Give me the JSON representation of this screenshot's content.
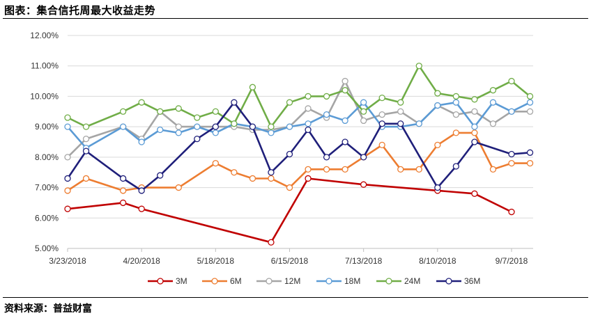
{
  "header": {
    "title": "图表：集合信托周最大收益走势"
  },
  "footer": {
    "source": "资料来源：普益财富"
  },
  "chart_data": {
    "type": "line",
    "title": "",
    "xlabel": "",
    "ylabel": "",
    "ylim": [
      5.0,
      12.0
    ],
    "y_ticks": [
      "5.00%",
      "6.00%",
      "7.00%",
      "8.00%",
      "9.00%",
      "10.00%",
      "11.00%",
      "12.00%"
    ],
    "x_ticks": [
      "3/23/2018",
      "4/20/2018",
      "5/18/2018",
      "6/15/2018",
      "7/13/2018",
      "8/10/2018",
      "9/7/2018"
    ],
    "grid": "horizontal",
    "legend": "bottom",
    "series": [
      {
        "name": "3M",
        "color": "#C00000",
        "points": [
          [
            "3/23/2018",
            6.3
          ],
          [
            "4/13/2018",
            6.5
          ],
          [
            "4/20/2018",
            6.3
          ],
          [
            "6/8/2018",
            5.2
          ],
          [
            "6/22/2018",
            7.3
          ],
          [
            "7/13/2018",
            7.1
          ],
          [
            "8/10/2018",
            6.9
          ],
          [
            "8/24/2018",
            6.8
          ],
          [
            "9/7/2018",
            6.2
          ]
        ]
      },
      {
        "name": "6M",
        "color": "#ED7D31",
        "points": [
          [
            "3/23/2018",
            6.9
          ],
          [
            "3/30/2018",
            7.3
          ],
          [
            "4/13/2018",
            6.9
          ],
          [
            "4/20/2018",
            7.0
          ],
          [
            "5/4/2018",
            7.0
          ],
          [
            "5/18/2018",
            7.8
          ],
          [
            "5/25/2018",
            7.5
          ],
          [
            "6/1/2018",
            7.3
          ],
          [
            "6/8/2018",
            7.3
          ],
          [
            "6/15/2018",
            7.0
          ],
          [
            "6/22/2018",
            7.6
          ],
          [
            "6/29/2018",
            7.6
          ],
          [
            "7/6/2018",
            7.6
          ],
          [
            "7/13/2018",
            8.0
          ],
          [
            "7/20/2018",
            8.4
          ],
          [
            "7/27/2018",
            7.6
          ],
          [
            "8/3/2018",
            7.6
          ],
          [
            "8/10/2018",
            8.4
          ],
          [
            "8/17/2018",
            8.8
          ],
          [
            "8/24/2018",
            8.8
          ],
          [
            "8/31/2018",
            7.6
          ],
          [
            "9/7/2018",
            7.8
          ],
          [
            "9/14/2018",
            7.8
          ]
        ]
      },
      {
        "name": "12M",
        "color": "#A5A5A5",
        "points": [
          [
            "3/23/2018",
            8.0
          ],
          [
            "3/30/2018",
            8.6
          ],
          [
            "4/13/2018",
            9.0
          ],
          [
            "4/20/2018",
            8.6
          ],
          [
            "4/27/2018",
            9.5
          ],
          [
            "5/4/2018",
            9.0
          ],
          [
            "5/11/2018",
            9.0
          ],
          [
            "5/18/2018",
            9.0
          ],
          [
            "5/25/2018",
            9.0
          ],
          [
            "6/1/2018",
            8.9
          ],
          [
            "6/8/2018",
            8.9
          ],
          [
            "6/15/2018",
            9.0
          ],
          [
            "6/22/2018",
            9.6
          ],
          [
            "6/29/2018",
            9.3
          ],
          [
            "7/6/2018",
            10.5
          ],
          [
            "7/13/2018",
            9.2
          ],
          [
            "7/20/2018",
            9.4
          ],
          [
            "7/27/2018",
            9.5
          ],
          [
            "8/3/2018",
            9.1
          ],
          [
            "8/10/2018",
            9.7
          ],
          [
            "8/17/2018",
            9.4
          ],
          [
            "8/24/2018",
            9.5
          ],
          [
            "8/31/2018",
            9.1
          ],
          [
            "9/7/2018",
            9.5
          ],
          [
            "9/14/2018",
            9.5
          ]
        ]
      },
      {
        "name": "18M",
        "color": "#5B9BD5",
        "points": [
          [
            "3/23/2018",
            9.0
          ],
          [
            "3/30/2018",
            8.3
          ],
          [
            "4/13/2018",
            9.0
          ],
          [
            "4/20/2018",
            8.5
          ],
          [
            "4/27/2018",
            8.9
          ],
          [
            "5/4/2018",
            8.8
          ],
          [
            "5/11/2018",
            9.0
          ],
          [
            "5/18/2018",
            8.8
          ],
          [
            "5/25/2018",
            9.1
          ],
          [
            "6/1/2018",
            9.0
          ],
          [
            "6/8/2018",
            8.8
          ],
          [
            "6/15/2018",
            9.0
          ],
          [
            "6/22/2018",
            9.1
          ],
          [
            "6/29/2018",
            9.4
          ],
          [
            "7/6/2018",
            9.2
          ],
          [
            "7/13/2018",
            9.8
          ],
          [
            "7/20/2018",
            9.0
          ],
          [
            "7/27/2018",
            9.0
          ],
          [
            "8/3/2018",
            9.1
          ],
          [
            "8/10/2018",
            9.7
          ],
          [
            "8/17/2018",
            9.8
          ],
          [
            "8/24/2018",
            9.0
          ],
          [
            "8/31/2018",
            9.8
          ],
          [
            "9/7/2018",
            9.5
          ],
          [
            "9/14/2018",
            9.8
          ]
        ]
      },
      {
        "name": "24M",
        "color": "#70AD47",
        "points": [
          [
            "3/23/2018",
            9.3
          ],
          [
            "3/30/2018",
            9.0
          ],
          [
            "4/13/2018",
            9.5
          ],
          [
            "4/20/2018",
            9.8
          ],
          [
            "4/27/2018",
            9.5
          ],
          [
            "5/4/2018",
            9.6
          ],
          [
            "5/11/2018",
            9.3
          ],
          [
            "5/18/2018",
            9.5
          ],
          [
            "5/25/2018",
            9.1
          ],
          [
            "6/1/2018",
            10.3
          ],
          [
            "6/8/2018",
            9.0
          ],
          [
            "6/15/2018",
            9.8
          ],
          [
            "6/22/2018",
            10.0
          ],
          [
            "6/29/2018",
            10.0
          ],
          [
            "7/6/2018",
            10.2
          ],
          [
            "7/13/2018",
            9.5
          ],
          [
            "7/20/2018",
            9.95
          ],
          [
            "7/27/2018",
            9.8
          ],
          [
            "8/3/2018",
            11.0
          ],
          [
            "8/10/2018",
            10.1
          ],
          [
            "8/17/2018",
            10.0
          ],
          [
            "8/24/2018",
            9.9
          ],
          [
            "8/31/2018",
            10.2
          ],
          [
            "9/7/2018",
            10.5
          ],
          [
            "9/14/2018",
            10.0
          ]
        ]
      },
      {
        "name": "36M",
        "color": "#1F1F7A",
        "points": [
          [
            "3/23/2018",
            7.3
          ],
          [
            "3/30/2018",
            8.2
          ],
          [
            "4/13/2018",
            7.3
          ],
          [
            "4/20/2018",
            6.9
          ],
          [
            "4/27/2018",
            7.4
          ],
          [
            "5/11/2018",
            8.6
          ],
          [
            "5/18/2018",
            9.0
          ],
          [
            "5/25/2018",
            9.8
          ],
          [
            "6/1/2018",
            9.0
          ],
          [
            "6/8/2018",
            7.5
          ],
          [
            "6/15/2018",
            8.1
          ],
          [
            "6/22/2018",
            8.9
          ],
          [
            "6/29/2018",
            8.0
          ],
          [
            "7/6/2018",
            8.5
          ],
          [
            "7/13/2018",
            8.0
          ],
          [
            "7/20/2018",
            9.1
          ],
          [
            "7/27/2018",
            9.1
          ],
          [
            "8/10/2018",
            7.0
          ],
          [
            "8/17/2018",
            7.7
          ],
          [
            "8/24/2018",
            8.5
          ],
          [
            "9/7/2018",
            8.1
          ],
          [
            "9/14/2018",
            8.15
          ]
        ]
      }
    ]
  }
}
